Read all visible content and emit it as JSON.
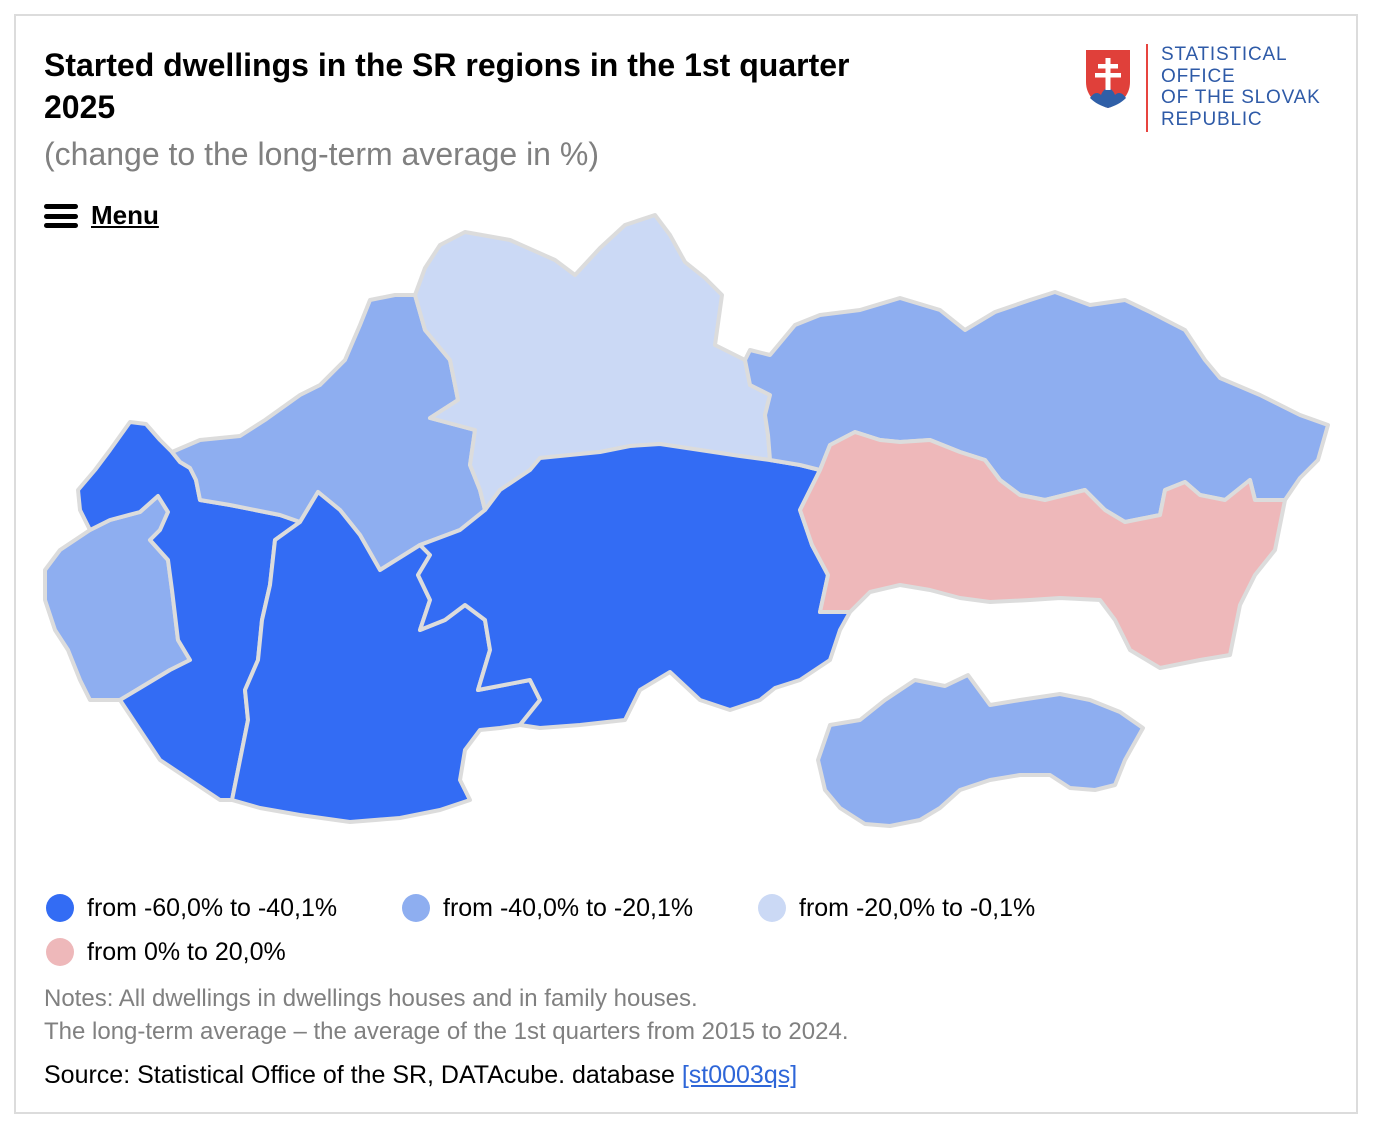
{
  "header": {
    "title": "Started dwellings in the SR regions in the 1st quarter 2025",
    "subtitle": "(change to the long-term average in %)"
  },
  "logo": {
    "org_lines": [
      "STATISTICAL",
      "OFFICE",
      "OF THE SLOVAK",
      "REPUBLIC"
    ],
    "shield_colors": {
      "red": "#e0403a",
      "blue": "#2f5fa7",
      "white": "#ffffff"
    }
  },
  "menu": {
    "label": "Menu",
    "icon": "hamburger-icon"
  },
  "map": {
    "regions": [
      {
        "id": "BA",
        "class": "from -40,0% to -20,1%",
        "color": "#8eaef0"
      },
      {
        "id": "TT",
        "class": "from -60,0% to -40,1%",
        "color": "#336cf4"
      },
      {
        "id": "TN",
        "class": "from -40,0% to -20,1%",
        "color": "#8eaef0"
      },
      {
        "id": "NR",
        "class": "from -60,0% to -40,1%",
        "color": "#336cf4"
      },
      {
        "id": "ZA",
        "class": "from -20,0% to -0,1%",
        "color": "#cbd9f5"
      },
      {
        "id": "BB",
        "class": "from -60,0% to -40,1%",
        "color": "#336cf4"
      },
      {
        "id": "PO",
        "class": "from -40,0% to -20,1%",
        "color": "#8eaef0"
      },
      {
        "id": "KE",
        "class": "from 0% to 20,0%",
        "color": "#eeb8ba"
      },
      {
        "id": "ISLAND",
        "class": "from -40,0% to -20,1%",
        "color": "#8eaef0"
      }
    ],
    "border_color": "#dcdcdc"
  },
  "legend": {
    "items": [
      {
        "label": "from -60,0% to -40,1%",
        "color": "#336cf4"
      },
      {
        "label": "from -40,0% to -20,1%",
        "color": "#8eaef0"
      },
      {
        "label": "from -20,0% to -0,1%",
        "color": "#cbd9f5"
      },
      {
        "label": "from 0% to 20,0%",
        "color": "#eeb8ba"
      }
    ]
  },
  "notes": {
    "line1": "Notes: All dwellings in dwellings houses and in family houses.",
    "line2": "The long-term average – the average of the 1st quarters from 2015 to 2024."
  },
  "source": {
    "text": "Source: Statistical Office of the SR, DATAcube. database ",
    "link": "[st0003qs]"
  }
}
